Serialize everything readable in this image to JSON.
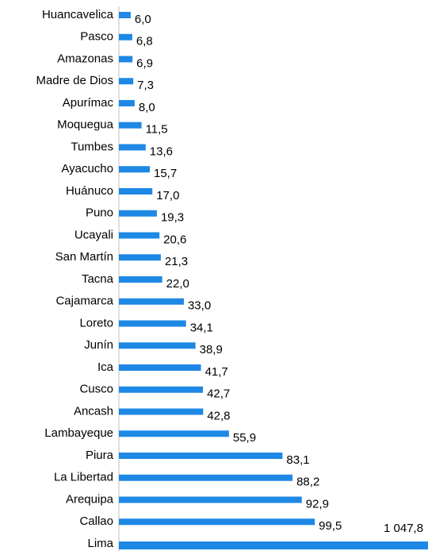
{
  "chart_data": {
    "type": "bar",
    "orientation": "horizontal",
    "color": "#1e88e5",
    "categories": [
      "Huancavelica",
      "Pasco",
      "Amazonas",
      "Madre de Dios",
      "Apurímac",
      "Moquegua",
      "Tumbes",
      "Ayacucho",
      "Huánuco",
      "Puno",
      "Ucayali",
      "San Martín",
      "Tacna",
      "Cajamarca",
      "Loreto",
      "Junín",
      "Ica",
      "Cusco",
      "Ancash",
      "Lambayeque",
      "Piura",
      "La Libertad",
      "Arequipa",
      "Callao",
      "Lima"
    ],
    "values": [
      6.0,
      6.8,
      6.9,
      7.3,
      8.0,
      11.5,
      13.6,
      15.7,
      17.0,
      19.3,
      20.6,
      21.3,
      22.0,
      33.0,
      34.1,
      38.9,
      41.7,
      42.7,
      42.8,
      55.9,
      83.1,
      88.2,
      92.9,
      99.5,
      1047.8
    ],
    "value_labels": [
      "6,0",
      "6,8",
      "6,9",
      "7,3",
      "8,0",
      "11,5",
      "13,6",
      "15,7",
      "17,0",
      "19,3",
      "20,6",
      "21,3",
      "22,0",
      "33,0",
      "34,1",
      "38,9",
      "41,7",
      "42,7",
      "42,8",
      "55,9",
      "83,1",
      "88,2",
      "92,9",
      "99,5",
      "1 047,8"
    ],
    "xlim": [
      0,
      157
    ]
  }
}
